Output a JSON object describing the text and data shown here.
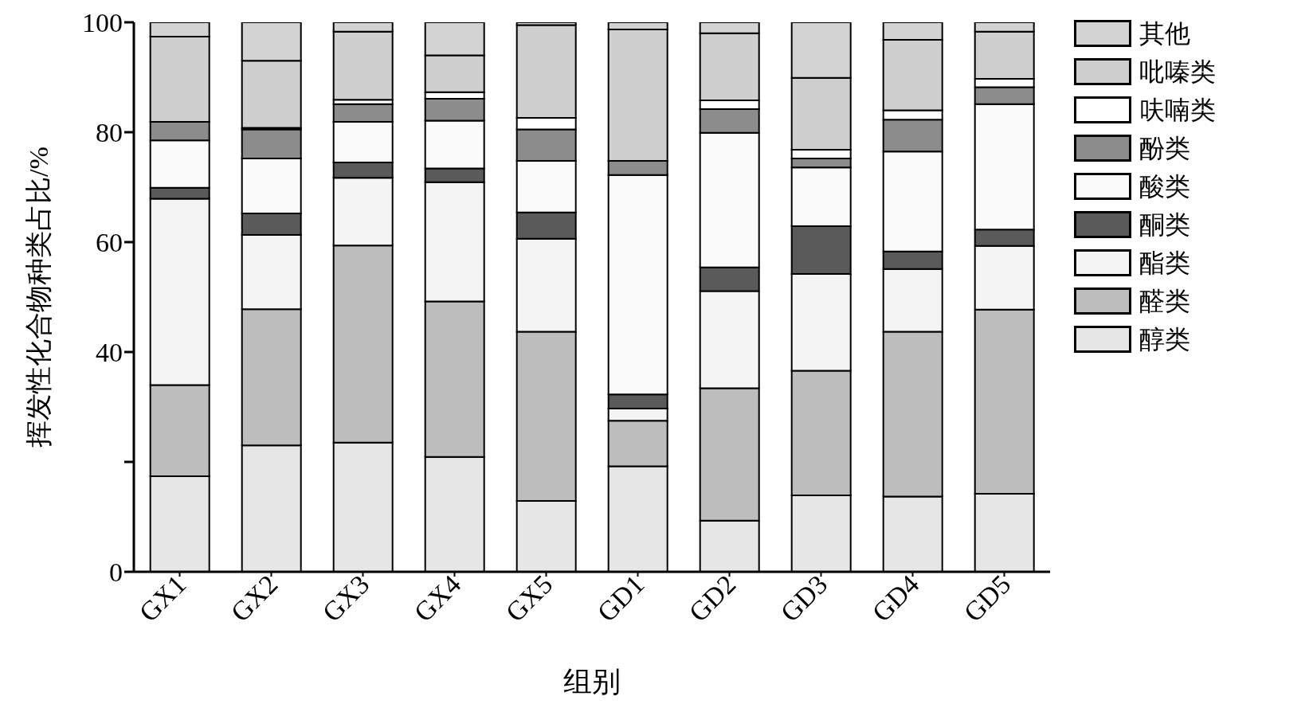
{
  "chart_data": {
    "type": "bar",
    "stacked": true,
    "xlabel": "组别",
    "ylabel": "挥发性化合物种类占比/%",
    "categories": [
      "GX1",
      "GX2",
      "GX3",
      "GX4",
      "GX5",
      "GD1",
      "GD2",
      "GD3",
      "GD4",
      "GD5"
    ],
    "series": [
      {
        "name": "醇类",
        "color": "#e6e6e6",
        "values": [
          17.4,
          23.0,
          23.5,
          20.9,
          12.9,
          19.2,
          9.3,
          13.9,
          13.7,
          14.2
        ]
      },
      {
        "name": "醛类",
        "color": "#bdbdbd",
        "values": [
          16.6,
          24.8,
          35.9,
          28.3,
          30.8,
          8.3,
          24.1,
          22.7,
          30.0,
          33.5
        ]
      },
      {
        "name": "酯类",
        "color": "#f4f4f4",
        "values": [
          33.9,
          13.5,
          12.3,
          21.7,
          16.9,
          2.2,
          17.7,
          17.6,
          11.4,
          11.6
        ]
      },
      {
        "name": "酮类",
        "color": "#5a5a5a",
        "values": [
          2.0,
          3.9,
          2.8,
          2.5,
          4.8,
          2.6,
          4.3,
          8.7,
          3.2,
          3.0
        ]
      },
      {
        "name": "酸类",
        "color": "#fafafa",
        "values": [
          8.6,
          10.0,
          7.4,
          8.7,
          9.4,
          39.9,
          24.5,
          10.7,
          18.2,
          22.8
        ]
      },
      {
        "name": "酚类",
        "color": "#8c8c8c",
        "values": [
          3.4,
          5.3,
          3.2,
          4.0,
          5.7,
          2.6,
          4.3,
          1.6,
          5.8,
          3.1
        ]
      },
      {
        "name": "呋喃类",
        "color": "#ffffff",
        "values": [
          null,
          0.3,
          0.8,
          1.2,
          2.1,
          0,
          1.6,
          1.6,
          1.7,
          1.5
        ]
      },
      {
        "name": "吡嗪类",
        "color": "#cfcfcf",
        "values": [
          15.5,
          12.2,
          12.4,
          6.7,
          16.9,
          23.9,
          12.2,
          13.1,
          12.8,
          8.6
        ]
      },
      {
        "name": "其他",
        "color": "#d3d3d3",
        "values": [
          2.6,
          7.0,
          1.7,
          6.0,
          0.5,
          1.3,
          2.0,
          10.1,
          3.2,
          1.7
        ]
      }
    ],
    "ylim": [
      0,
      100
    ],
    "yticks": [
      0,
      {
        "value": 20,
        "label": null
      },
      40,
      60,
      80,
      100
    ],
    "legend": "right"
  }
}
